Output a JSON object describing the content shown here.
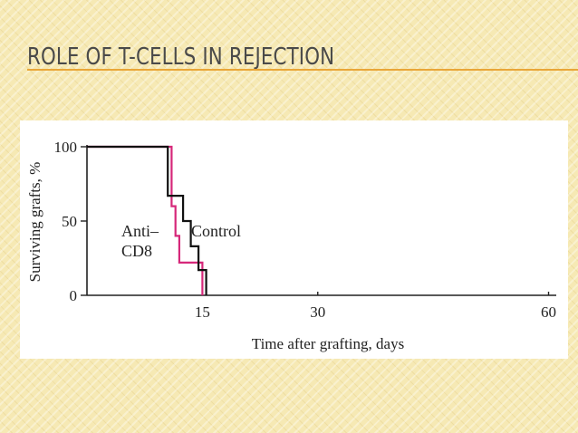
{
  "slide": {
    "title": "ROLE OF T-CELLS IN REJECTION"
  },
  "chart_data": {
    "type": "line",
    "step": true,
    "title": "",
    "xlabel": "Time after grafting, days",
    "ylabel": "Surviving grafts, %",
    "xlim": [
      0,
      61
    ],
    "ylim": [
      0,
      100
    ],
    "xticks": [
      15,
      30,
      60
    ],
    "yticks": [
      0,
      50,
      100
    ],
    "grid": false,
    "series": [
      {
        "name": "Control",
        "color": "#111111",
        "x": [
          0,
          10.5,
          10.5,
          12.5,
          12.5,
          13.5,
          13.5,
          14.5,
          14.5,
          15.5,
          15.5
        ],
        "y": [
          100,
          100,
          67,
          67,
          50,
          50,
          33,
          33,
          17,
          17,
          0
        ]
      },
      {
        "name": "Anti–\nCD8",
        "color": "#d6287a",
        "x": [
          0,
          11,
          11,
          11.5,
          11.5,
          12,
          12,
          15,
          15
        ],
        "y": [
          100,
          100,
          60,
          60,
          40,
          40,
          22,
          22,
          0
        ]
      }
    ],
    "annotations": [
      {
        "text": "Control",
        "for": "Control"
      },
      {
        "text": "Anti–",
        "for": "Anti-CD8"
      },
      {
        "text": "CD8",
        "for": "Anti-CD8"
      }
    ]
  }
}
